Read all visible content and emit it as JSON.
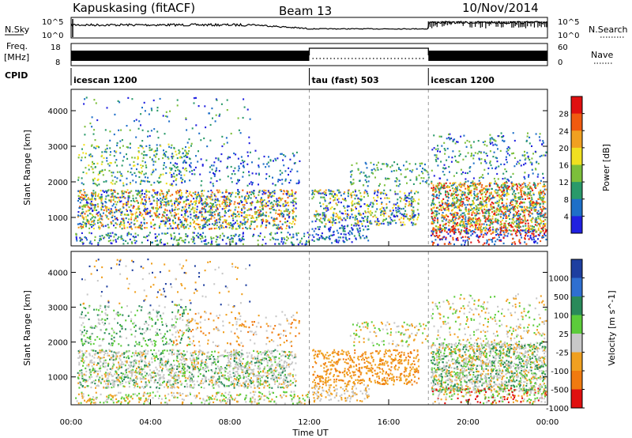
{
  "header": {
    "station": "Kapuskasing (fitACF)",
    "beam": "Beam 13",
    "date": "10/Nov/2014"
  },
  "colors": {
    "power_scale": [
      "#2020e0",
      "#1e6fc8",
      "#2a9a6a",
      "#7cbf3a",
      "#f0e020",
      "#f0a020",
      "#f05a10",
      "#e01010"
    ],
    "velocity_scale": [
      "#1e3fa0",
      "#2f6fd0",
      "#2a8a5a",
      "#5ccc3a",
      "#c8c8c8",
      "#f0a020",
      "#f07a10",
      "#e01010"
    ]
  },
  "time_axis": {
    "label": "Time UT",
    "ticks": [
      "00:00",
      "04:00",
      "08:00",
      "12:00",
      "16:00",
      "20:00",
      "00:00"
    ],
    "start_hour": 0,
    "end_hour": 24
  },
  "status_panels": {
    "nsky_label": "N.Sky",
    "nsky_ticks": [
      "10^5",
      "10^0"
    ],
    "nsearch_label": "N.Search",
    "nsearch_ticks": [
      "10^5",
      "10^0"
    ],
    "freq_label_1": "Freq.",
    "freq_label_2": "[MHz]",
    "freq_ticks": [
      "18",
      "8"
    ],
    "nave_label": "Nave",
    "nave_ticks": [
      "60",
      "0"
    ],
    "cpid_label": "CPID",
    "cpid_segments": [
      {
        "name": "icescan 1200",
        "start": 0,
        "end": 12
      },
      {
        "name": "tau (fast) 503",
        "start": 12,
        "end": 18
      },
      {
        "name": "icescan 1200",
        "start": 18,
        "end": 24
      }
    ]
  },
  "chart_data": [
    {
      "type": "heatmap",
      "title": "",
      "xlabel": "",
      "ylabel": "Slant Range [km]",
      "xlim": [
        0,
        24
      ],
      "ylim": [
        200,
        4600
      ],
      "yticks": [
        "1000",
        "2000",
        "3000",
        "4000"
      ],
      "colorbar_label": "Power [dB]",
      "colorbar_ticks": [
        "4",
        "8",
        "12",
        "16",
        "20",
        "24",
        "28"
      ],
      "clim": [
        0,
        32
      ]
    },
    {
      "type": "heatmap",
      "title": "",
      "xlabel": "Time UT",
      "ylabel": "Slant Range [km]",
      "xlim": [
        0,
        24
      ],
      "ylim": [
        200,
        4600
      ],
      "yticks": [
        "1000",
        "2000",
        "3000",
        "4000"
      ],
      "colorbar_label": "Velocity [m s^-1]",
      "colorbar_ticks": [
        "1000",
        "500",
        "100",
        "25",
        "-25",
        "-100",
        "-500",
        "-1000"
      ]
    }
  ]
}
